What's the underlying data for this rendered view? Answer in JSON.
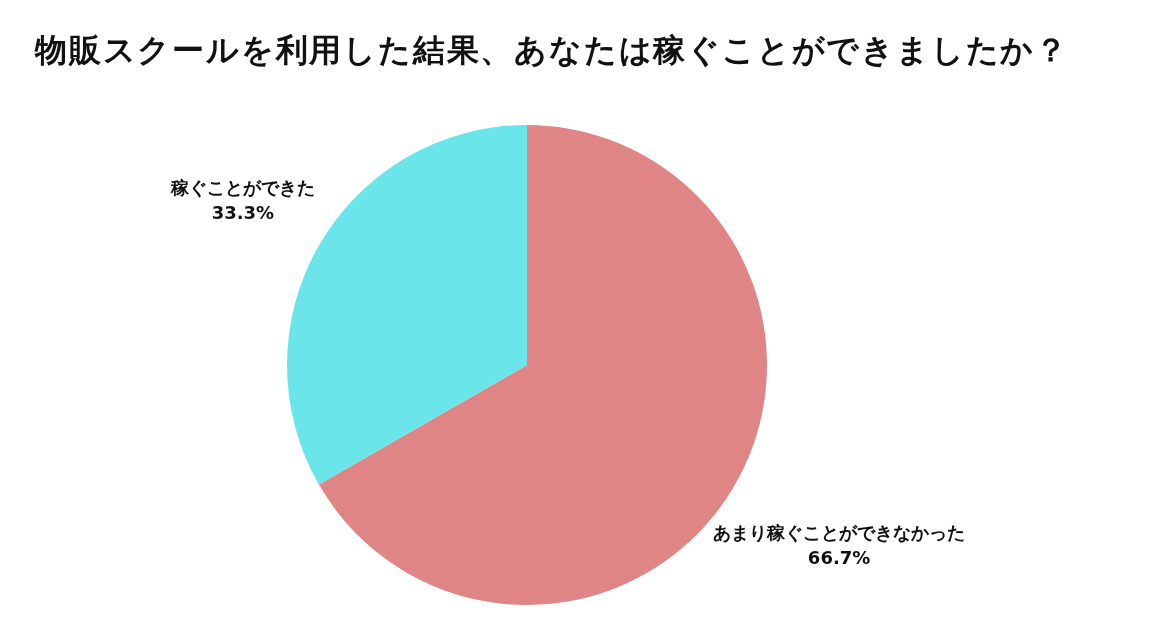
{
  "chart_data": {
    "type": "pie",
    "title": "物販スクールを利用した結果、あなたは稼ぐことができましたか？",
    "categories": [
      "あまり稼ぐことができなかった",
      "稼ぐことができた"
    ],
    "values": [
      66.7,
      33.3
    ],
    "value_labels": [
      "66.7%",
      "33.3%"
    ],
    "colors": [
      "#e08585",
      "#6ae5e9"
    ]
  }
}
